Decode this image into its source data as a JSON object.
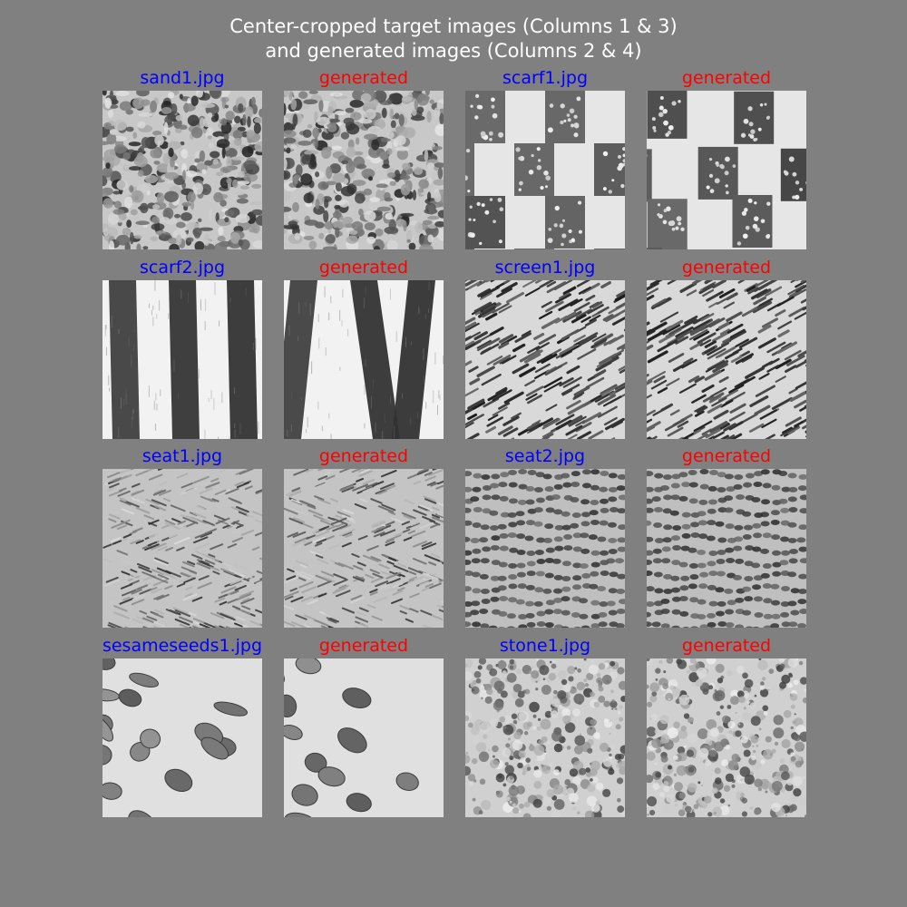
{
  "title": {
    "line1": "Center-cropped target images (Columns 1 & 3)",
    "line2": "and generated images (Columns 2 & 4)"
  },
  "colors": {
    "target_label": "#0000ff",
    "generated_label": "#ff0000",
    "background": "#808080",
    "title": "#ffffff"
  },
  "grid": [
    {
      "target": {
        "label": "sand1.jpg",
        "texture": "speckle-sand"
      },
      "generated": {
        "label": "generated",
        "texture": "speckle-sand"
      }
    },
    {
      "target": {
        "label": "scarf1.jpg",
        "texture": "woven-blocks"
      },
      "generated": {
        "label": "generated",
        "texture": "woven-blocks"
      }
    },
    {
      "target": {
        "label": "scarf2.jpg",
        "texture": "vertical-stripes"
      },
      "generated": {
        "label": "generated",
        "texture": "vertical-stripes"
      }
    },
    {
      "target": {
        "label": "screen1.jpg",
        "texture": "diagonal-mesh"
      },
      "generated": {
        "label": "generated",
        "texture": "diagonal-mesh"
      }
    },
    {
      "target": {
        "label": "seat1.jpg",
        "texture": "herringbone-fabric"
      },
      "generated": {
        "label": "generated",
        "texture": "herringbone-fabric"
      }
    },
    {
      "target": {
        "label": "seat2.jpg",
        "texture": "wavy-fabric"
      },
      "generated": {
        "label": "generated",
        "texture": "wavy-fabric"
      }
    },
    {
      "target": {
        "label": "sesameseeds1.jpg",
        "texture": "seeds"
      },
      "generated": {
        "label": "generated",
        "texture": "seeds"
      }
    },
    {
      "target": {
        "label": "stone1.jpg",
        "texture": "mottled-stone"
      },
      "generated": {
        "label": "generated",
        "texture": "mottled-stone"
      }
    }
  ]
}
